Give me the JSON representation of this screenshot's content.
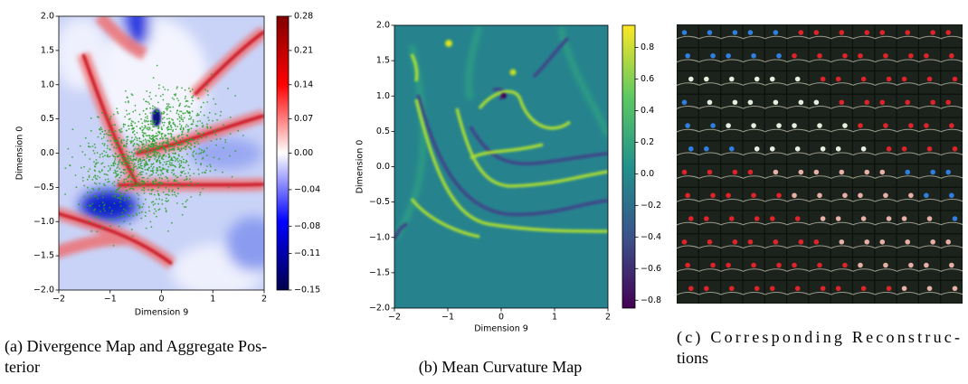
{
  "chart_data": [
    {
      "type": "heatmap",
      "x_label": "Dimension 9",
      "y_label": "Dimension 0",
      "xlim": [
        -2,
        2
      ],
      "ylim": [
        -2,
        2
      ],
      "xticks": [
        {
          "value": -2,
          "label": "−2"
        },
        {
          "value": -1,
          "label": "−1"
        },
        0,
        1,
        2
      ],
      "yticks": [
        {
          "value": -2,
          "label": "−2.0"
        },
        {
          "value": -1.5,
          "label": "−1.5"
        },
        {
          "value": -1,
          "label": "−1.0"
        },
        {
          "value": -0.5,
          "label": "−0.5"
        },
        {
          "value": 0,
          "label": "0.0"
        },
        0.5,
        {
          "value": 1,
          "label": "1.0"
        },
        1.5,
        {
          "value": 2,
          "label": "2.0"
        }
      ],
      "colormap": "seismic",
      "clim": [
        -0.15,
        0.28
      ],
      "norm_center": 0,
      "colorbar_ticks": [
        0.28,
        0.21,
        0.14,
        0.07,
        {
          "value": 0,
          "label": "0.00"
        },
        {
          "value": -0.04,
          "label": "−0.04"
        },
        {
          "value": -0.08,
          "label": "−0.08"
        },
        {
          "value": -0.11,
          "label": "−0.11"
        },
        {
          "value": -0.15,
          "label": "−0.15"
        }
      ],
      "scatter_color": "#2ca02c",
      "caption": [
        "(a) Divergence Map and Aggregate Pos-",
        "terior"
      ]
    },
    {
      "type": "heatmap",
      "x_label": "Dimension 9",
      "y_label": "Dimension 0",
      "xlim": [
        -2,
        2
      ],
      "ylim": [
        -2,
        2
      ],
      "xticks": [
        {
          "value": -2,
          "label": "−2"
        },
        {
          "value": -1,
          "label": "−1"
        },
        0,
        1,
        2
      ],
      "yticks": [
        {
          "value": -2,
          "label": "−2.0"
        },
        {
          "value": -1.5,
          "label": "−1.5"
        },
        {
          "value": -1,
          "label": "−1.0"
        },
        {
          "value": -0.5,
          "label": "−0.5"
        },
        {
          "value": 0,
          "label": "0.0"
        },
        0.5,
        {
          "value": 1,
          "label": "1.0"
        },
        1.5,
        {
          "value": 2,
          "label": "2.0"
        }
      ],
      "colormap": "viridis",
      "clim": [
        -0.85,
        0.94
      ],
      "colorbar_ticks": [
        0.8,
        0.6,
        0.4,
        0.2,
        {
          "value": 0,
          "label": "0.0"
        },
        {
          "value": -0.2,
          "label": "−0.2"
        },
        {
          "value": -0.4,
          "label": "−0.4"
        },
        {
          "value": -0.6,
          "label": "−0.6"
        },
        {
          "value": -0.8,
          "label": "−0.8"
        }
      ],
      "caption": [
        "(b) Mean Curvature Map"
      ]
    }
  ],
  "panel_c": {
    "caption": [
      "(c) Corresponding Reconstruc-",
      "tions"
    ]
  }
}
